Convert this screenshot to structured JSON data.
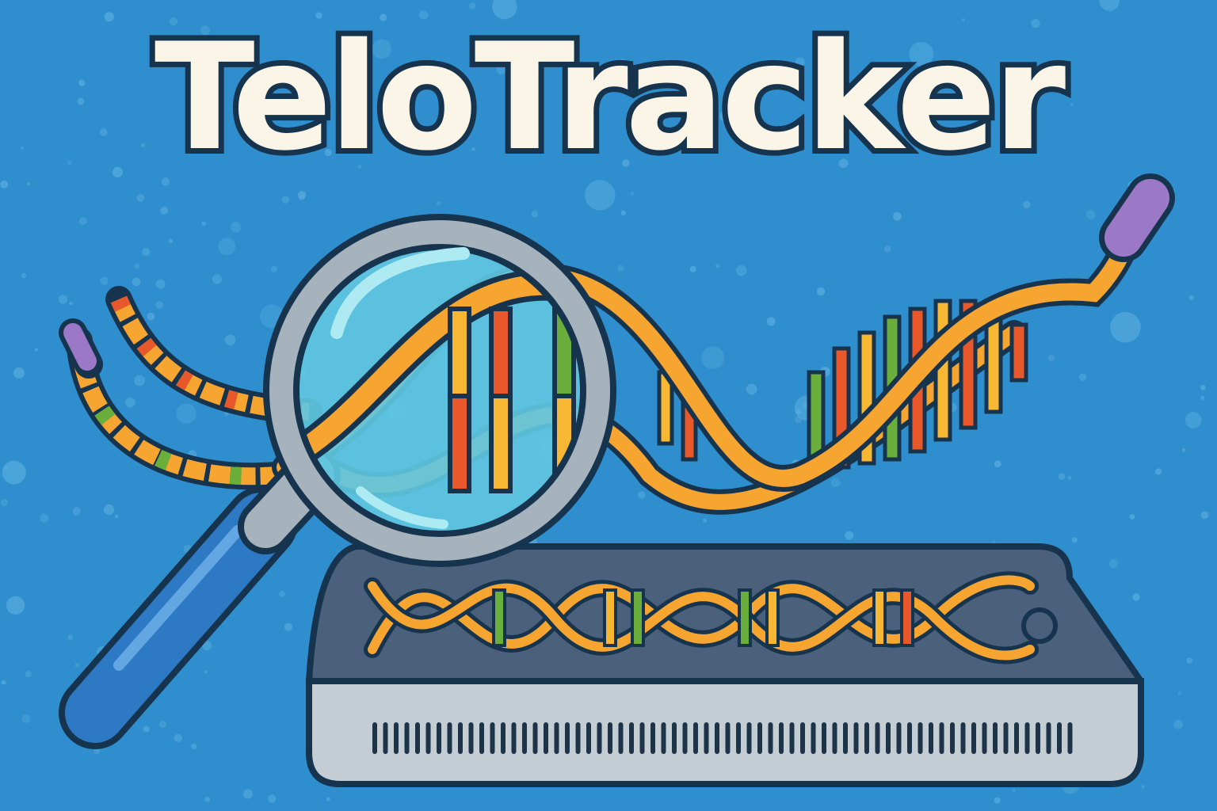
{
  "title": "TeloTracker",
  "icons": [
    "magnifying-glass-icon",
    "dna-helix-icon",
    "telomere-strand-icon",
    "sequencer-device-icon"
  ],
  "colors": {
    "background": "#2f8fce",
    "outline": "#17344f",
    "title_fill": "#fbf5e8",
    "strand_orange": "#f6a531",
    "base_red": "#e8582a",
    "base_green": "#6aae3c",
    "base_yellow": "#f7b733",
    "telomere_cap": "#9b79c6",
    "lens": "#5fc6df",
    "device_body": "#4b607a",
    "device_front": "#c4ccd4"
  }
}
